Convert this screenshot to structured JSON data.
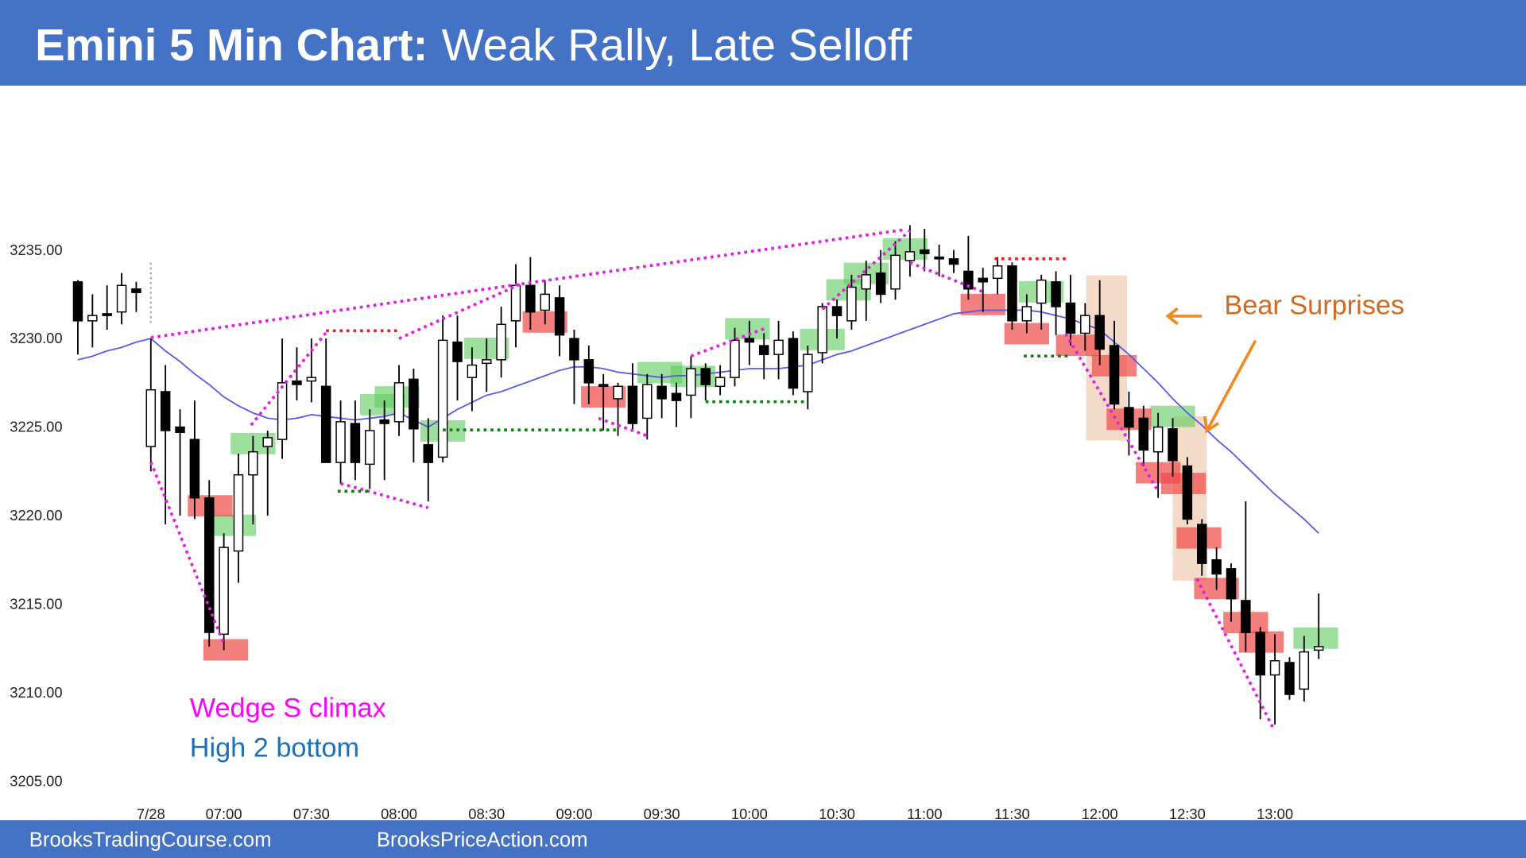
{
  "chart_data": {
    "type": "candlestick",
    "title": "Emini 5 Min Chart:",
    "subtitle": "Weak Rally, Late Selloff",
    "categories": [
      null,
      null,
      null,
      null,
      null,
      "7/28",
      null,
      null,
      null,
      null,
      "07:00",
      null,
      null,
      null,
      null,
      null,
      "07:30",
      null,
      null,
      null,
      null,
      null,
      "08:00",
      null,
      null,
      null,
      null,
      null,
      "08:30",
      null,
      null,
      null,
      null,
      null,
      "09:00",
      null,
      null,
      null,
      null,
      null,
      "09:30",
      null,
      null,
      null,
      null,
      null,
      "10:00",
      null,
      null,
      null,
      null,
      null,
      "10:30",
      null,
      null,
      null,
      null,
      null,
      "11:00",
      null,
      null,
      null,
      null,
      null,
      "11:30",
      null,
      null,
      null,
      null,
      null,
      "12:00",
      null,
      null,
      null,
      null,
      null,
      "12:30",
      null,
      null,
      null,
      null,
      null,
      "13:00",
      null,
      null,
      null
    ],
    "open": [
      3233.2,
      3231.0,
      3231.4,
      3231.5,
      3232.8,
      3223.9,
      3227.0,
      3225.0,
      3224.3,
      3221.0,
      3213.3,
      3218.0,
      3222.3,
      3223.9,
      3224.3,
      3227.6,
      3227.6,
      3227.3,
      3223.0,
      3225.2,
      3222.9,
      3225.4,
      3225.3,
      3227.7,
      3224.0,
      3223.3,
      3229.8,
      3227.8,
      3228.6,
      3228.8,
      3231.0,
      3233.0,
      3231.6,
      3232.3,
      3230.0,
      3228.8,
      3227.4,
      3226.6,
      3227.3,
      3225.5,
      3227.3,
      3226.9,
      3226.8,
      3228.3,
      3227.3,
      3227.8,
      3230.0,
      3229.6,
      3229.1,
      3230.0,
      3227.0,
      3229.2,
      3231.8,
      3231.0,
      3232.8,
      3233.7,
      3232.8,
      3234.4,
      3235.0,
      3234.6,
      3234.5,
      3233.8,
      3233.4,
      3233.4,
      3234.1,
      3231.0,
      3232.0,
      3233.2,
      3232.0,
      3230.3,
      3231.3,
      3229.6,
      3226.1,
      3225.5,
      3223.6,
      3224.9,
      3222.8,
      3219.5,
      3217.5,
      3217.0,
      3215.2,
      3213.4,
      3211.0,
      3211.7,
      3210.2,
      3212.4
    ],
    "high": [
      3233.3,
      3232.5,
      3233.0,
      3233.7,
      3233.2,
      3230.0,
      3228.5,
      3226.0,
      3226.5,
      3222.0,
      3219.0,
      3223.5,
      3224.5,
      3224.8,
      3230.0,
      3229.5,
      3230.0,
      3230.0,
      3226.5,
      3226.5,
      3226.0,
      3226.5,
      3228.5,
      3228.3,
      3225.5,
      3231.3,
      3231.3,
      3229.5,
      3230.0,
      3231.8,
      3234.2,
      3234.6,
      3233.3,
      3233.0,
      3230.5,
      3229.6,
      3228.0,
      3227.5,
      3228.6,
      3228.0,
      3228.0,
      3227.5,
      3229.0,
      3228.6,
      3228.5,
      3230.6,
      3231.0,
      3230.3,
      3231.0,
      3230.4,
      3229.6,
      3232.0,
      3232.2,
      3233.6,
      3234.4,
      3235.0,
      3235.5,
      3236.4,
      3236.2,
      3235.3,
      3235.0,
      3235.8,
      3234.0,
      3234.6,
      3234.3,
      3232.5,
      3233.6,
      3233.8,
      3233.6,
      3232.0,
      3233.3,
      3231.0,
      3227.0,
      3226.2,
      3225.8,
      3225.5,
      3223.3,
      3219.8,
      3218.2,
      3217.3,
      3220.8,
      3213.7,
      3213.3,
      3212.0,
      3213.2,
      3215.6
    ],
    "low": [
      3229.1,
      3229.5,
      3230.5,
      3230.8,
      3231.5,
      3222.5,
      3219.5,
      3220.0,
      3219.8,
      3212.6,
      3212.4,
      3216.2,
      3219.5,
      3220.0,
      3223.2,
      3226.5,
      3226.4,
      3223.0,
      3221.8,
      3222.0,
      3221.5,
      3222.0,
      3224.5,
      3223.0,
      3220.8,
      3223.0,
      3226.5,
      3225.9,
      3227.0,
      3227.8,
      3229.5,
      3230.5,
      3230.8,
      3229.0,
      3226.3,
      3226.3,
      3224.8,
      3224.5,
      3224.8,
      3224.3,
      3225.5,
      3225.0,
      3225.5,
      3226.5,
      3226.8,
      3227.3,
      3228.5,
      3227.7,
      3227.7,
      3226.8,
      3226.0,
      3228.6,
      3230.0,
      3230.5,
      3231.0,
      3232.0,
      3232.2,
      3233.5,
      3233.8,
      3233.5,
      3233.7,
      3232.2,
      3231.5,
      3232.5,
      3230.5,
      3230.3,
      3230.5,
      3230.2,
      3229.6,
      3229.3,
      3228.5,
      3226.0,
      3223.4,
      3222.8,
      3221.0,
      3222.2,
      3219.5,
      3216.6,
      3215.8,
      3214.0,
      3212.3,
      3208.5,
      3208.2,
      3209.6,
      3209.5,
      3211.9
    ],
    "close": [
      3231.0,
      3231.3,
      3231.3,
      3233.0,
      3232.6,
      3227.1,
      3224.8,
      3224.7,
      3221.0,
      3213.4,
      3218.2,
      3222.3,
      3223.6,
      3224.4,
      3227.5,
      3227.4,
      3227.8,
      3223.0,
      3225.3,
      3223.0,
      3224.8,
      3225.2,
      3227.5,
      3224.9,
      3223.0,
      3229.9,
      3228.7,
      3228.5,
      3228.8,
      3230.8,
      3233.0,
      3231.5,
      3232.5,
      3230.2,
      3228.8,
      3227.5,
      3227.3,
      3227.3,
      3225.2,
      3227.4,
      3226.6,
      3226.5,
      3228.3,
      3227.4,
      3227.8,
      3229.9,
      3229.8,
      3229.1,
      3229.9,
      3227.2,
      3229.1,
      3231.8,
      3231.3,
      3232.9,
      3233.6,
      3232.5,
      3234.7,
      3234.9,
      3234.8,
      3234.5,
      3234.2,
      3232.8,
      3233.2,
      3234.1,
      3231.0,
      3231.8,
      3233.3,
      3231.8,
      3230.3,
      3231.3,
      3229.4,
      3226.3,
      3225.0,
      3223.7,
      3225.0,
      3223.1,
      3219.8,
      3217.3,
      3216.7,
      3215.3,
      3213.4,
      3211.0,
      3211.8,
      3209.9,
      3212.3,
      3212.6
    ],
    "up_color": "#ffffff",
    "down_color": "#000000",
    "overlay": {
      "type": "line",
      "color": "#5b5be6",
      "values": [
        3228.8,
        3229.0,
        3229.3,
        3229.5,
        3229.8,
        3230.0,
        3229.3,
        3228.7,
        3228.0,
        3227.4,
        3226.7,
        3226.2,
        3225.8,
        3225.5,
        3225.4,
        3225.5,
        3225.7,
        3225.6,
        3225.5,
        3225.4,
        3225.5,
        3225.6,
        3225.8,
        3225.4,
        3225.0,
        3225.5,
        3226.0,
        3226.4,
        3226.8,
        3227.0,
        3227.3,
        3227.6,
        3227.9,
        3228.2,
        3228.4,
        3228.4,
        3228.3,
        3228.1,
        3228.0,
        3227.9,
        3227.8,
        3227.9,
        3227.9,
        3228.0,
        3228.1,
        3228.2,
        3228.3,
        3228.3,
        3228.3,
        3228.4,
        3228.5,
        3228.8,
        3229.1,
        3229.3,
        3229.6,
        3229.9,
        3230.2,
        3230.5,
        3230.8,
        3231.1,
        3231.4,
        3231.5,
        3231.6,
        3231.6,
        3231.6,
        3231.6,
        3231.5,
        3231.3,
        3231.1,
        3230.8,
        3230.5,
        3229.8,
        3229.1,
        3228.3,
        3227.5,
        3226.6,
        3225.8,
        3225.1,
        3224.3,
        3223.6,
        3222.8,
        3222.0,
        3221.2,
        3220.5,
        3219.8,
        3219.0
      ]
    },
    "ylim": [
      3204,
      3243
    ],
    "yticks": [
      {
        "value": 3205,
        "label": "3205.00"
      },
      {
        "value": 3210,
        "label": "3210.00"
      },
      {
        "value": 3215,
        "label": "3215.00"
      },
      {
        "value": 3220,
        "label": "3220.00"
      },
      {
        "value": 3225,
        "label": "3225.00"
      },
      {
        "value": 3230,
        "label": "3230.00"
      },
      {
        "value": 3235,
        "label": "3235.00"
      }
    ],
    "annotations": [
      "Wedge S climax",
      "High 2 bottom",
      "Bear Surprises"
    ],
    "footer": [
      "BrooksTradingCourse.com",
      "BrooksPriceAction.com"
    ]
  }
}
